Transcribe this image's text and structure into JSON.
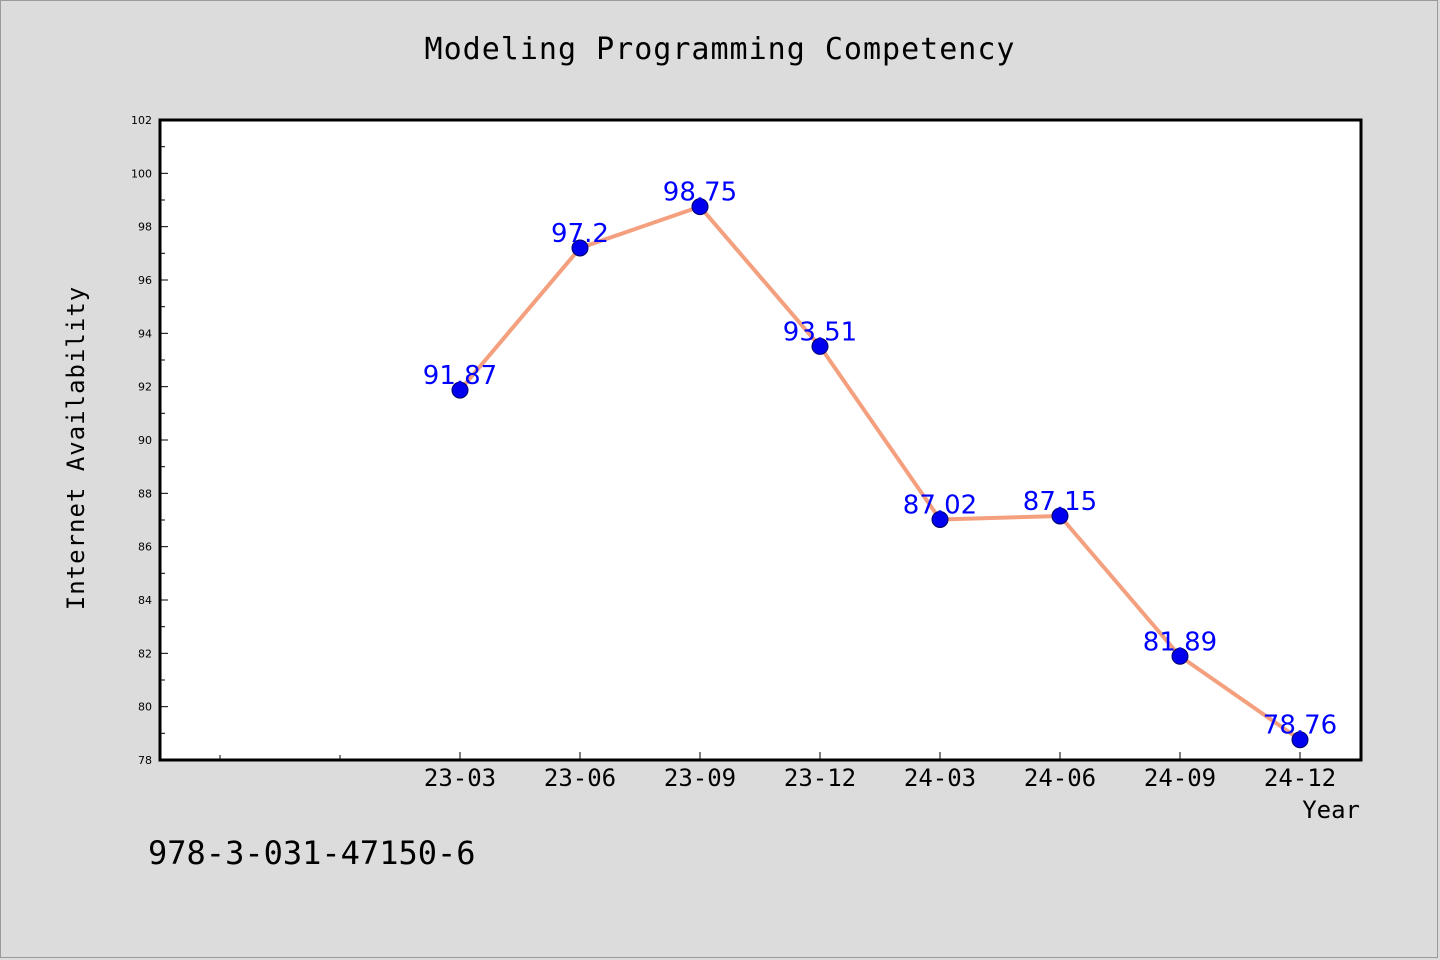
{
  "chart_data": {
    "type": "line",
    "title": "Modeling Programming Competency",
    "xlabel": "Year",
    "ylabel": "Internet Availability",
    "categories": [
      "23-03",
      "23-06",
      "23-09",
      "23-12",
      "24-03",
      "24-06",
      "24-09",
      "24-12"
    ],
    "series": [
      {
        "values": [
          91.87,
          97.2,
          98.75,
          93.51,
          87.02,
          87.15,
          81.89,
          78.76
        ]
      }
    ],
    "data_labels": [
      "91.87",
      "97.2",
      "98.75",
      "93.51",
      "87.02",
      "87.15",
      "81.89",
      "78.76"
    ],
    "ylim": [
      78,
      102
    ],
    "yticks": [
      78,
      80,
      82,
      84,
      86,
      88,
      90,
      92,
      94,
      96,
      98,
      100,
      102
    ],
    "grid": false,
    "colors": {
      "line": "#f4a07e",
      "marker": "#0000ee",
      "label": "#0000ff"
    }
  },
  "footnote": "978-3-031-47150-6"
}
